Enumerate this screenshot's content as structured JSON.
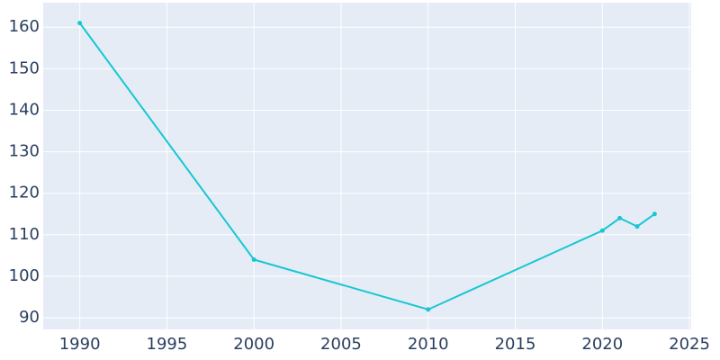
{
  "chart_data": {
    "type": "line",
    "x": [
      1990,
      2000,
      2010,
      2020,
      2021,
      2022,
      2023
    ],
    "series": [
      {
        "color": "#17c7d2",
        "values": [
          161,
          104,
          92,
          111,
          114,
          112,
          115
        ]
      }
    ],
    "xlim": [
      1987.9,
      2025.1
    ],
    "ylim": [
      87.2,
      165.9
    ],
    "xticks": [
      1990,
      1995,
      2000,
      2005,
      2010,
      2015,
      2020,
      2025
    ],
    "yticks": [
      90,
      100,
      110,
      120,
      130,
      140,
      150,
      160
    ],
    "grid": true
  }
}
